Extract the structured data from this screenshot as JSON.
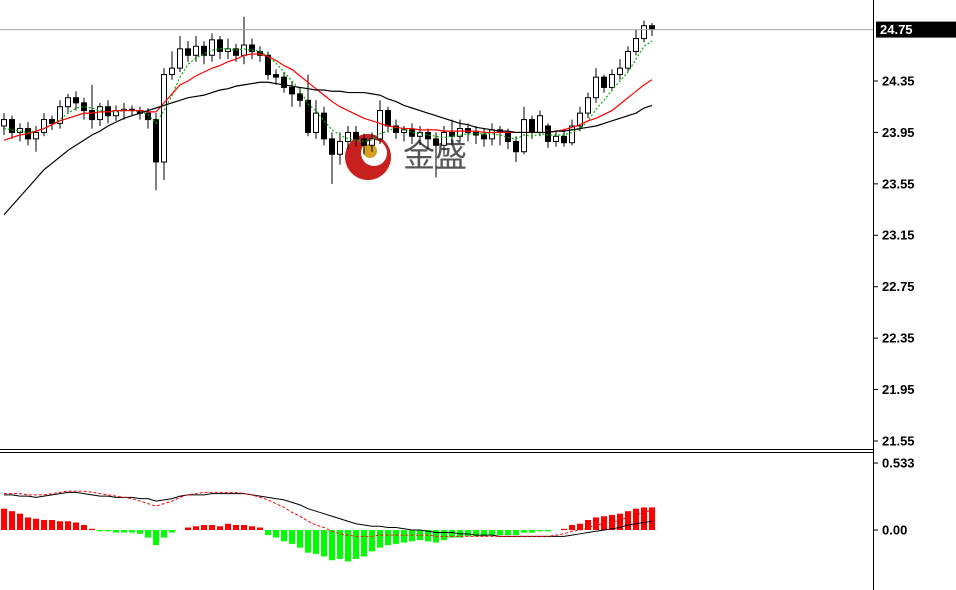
{
  "chart_data": [
    {
      "type": "candlestick",
      "ylim": [
        21.48,
        24.98
      ],
      "yticks": [
        24.35,
        23.95,
        23.55,
        23.15,
        22.75,
        22.35,
        21.95,
        21.55
      ],
      "current_price": 24.75,
      "watermark": "金盛",
      "up_color": "#ffffff",
      "down_color": "#000000",
      "outline_color": "#000000",
      "open": [
        24.0,
        24.05,
        23.95,
        23.98,
        23.9,
        23.95,
        24.05,
        24.02,
        24.15,
        24.22,
        24.18,
        24.12,
        24.05,
        24.15,
        24.08,
        24.12,
        24.13,
        24.12,
        24.1,
        24.05,
        23.72,
        24.4,
        24.45,
        24.6,
        24.55,
        24.62,
        24.55,
        24.67,
        24.58,
        24.6,
        24.55,
        24.63,
        24.58,
        24.55,
        24.4,
        24.38,
        24.3,
        24.25,
        24.2,
        23.95,
        24.1,
        23.9,
        23.78,
        23.88,
        23.95,
        23.9,
        23.85,
        23.9,
        24.12,
        24.0,
        23.95,
        23.97,
        23.92,
        23.95,
        23.9,
        23.85,
        23.95,
        23.92,
        23.98,
        23.95,
        23.93,
        23.9,
        23.97,
        23.95,
        23.88,
        23.8,
        24.05,
        23.95,
        24.0,
        23.88,
        23.92,
        23.87,
        24.0,
        24.1,
        24.22,
        24.38,
        24.3,
        24.4,
        24.45,
        24.58,
        24.68,
        24.78
      ],
      "high": [
        24.1,
        24.08,
        24.02,
        24.03,
        24.0,
        24.1,
        24.08,
        24.2,
        24.25,
        24.27,
        24.22,
        24.32,
        24.18,
        24.2,
        24.16,
        24.18,
        24.16,
        24.15,
        24.14,
        24.1,
        24.45,
        24.58,
        24.7,
        24.66,
        24.7,
        24.66,
        24.72,
        24.7,
        24.68,
        24.64,
        24.85,
        24.68,
        24.62,
        24.58,
        24.44,
        24.42,
        24.35,
        24.3,
        24.4,
        24.2,
        24.15,
        23.95,
        23.95,
        24.0,
        24.0,
        23.94,
        23.95,
        24.2,
        24.15,
        24.05,
        24.0,
        24.02,
        24.0,
        23.98,
        23.95,
        24.0,
        24.05,
        24.05,
        24.02,
        24.0,
        23.98,
        24.02,
        24.0,
        23.98,
        23.92,
        24.15,
        24.08,
        24.12,
        24.02,
        23.96,
        23.98,
        24.05,
        24.15,
        24.26,
        24.45,
        24.4,
        24.44,
        24.52,
        24.62,
        24.75,
        24.82,
        24.8
      ],
      "low": [
        23.93,
        23.9,
        23.88,
        23.85,
        23.8,
        23.92,
        23.97,
        23.98,
        24.1,
        24.12,
        24.05,
        23.98,
        24.0,
        24.02,
        24.04,
        24.05,
        24.08,
        24.05,
        23.98,
        23.5,
        23.58,
        24.36,
        24.42,
        24.5,
        24.5,
        24.48,
        24.5,
        24.52,
        24.52,
        24.5,
        24.48,
        24.52,
        24.5,
        24.36,
        24.32,
        24.26,
        24.15,
        24.15,
        23.92,
        23.9,
        23.85,
        23.55,
        23.7,
        23.82,
        23.84,
        23.78,
        23.8,
        23.86,
        23.95,
        23.9,
        23.88,
        23.86,
        23.85,
        23.82,
        23.6,
        23.78,
        23.85,
        23.88,
        23.88,
        23.86,
        23.84,
        23.85,
        23.85,
        23.82,
        23.72,
        23.78,
        23.9,
        23.92,
        23.83,
        23.84,
        23.84,
        23.85,
        23.96,
        24.06,
        24.18,
        24.26,
        24.27,
        24.36,
        24.42,
        24.55,
        24.65,
        24.7
      ],
      "close": [
        24.05,
        23.95,
        23.98,
        23.9,
        23.95,
        24.05,
        24.02,
        24.15,
        24.22,
        24.18,
        24.12,
        24.05,
        24.15,
        24.08,
        24.12,
        24.13,
        24.12,
        24.1,
        24.05,
        23.72,
        24.4,
        24.45,
        24.6,
        24.55,
        24.62,
        24.55,
        24.67,
        24.58,
        24.6,
        24.55,
        24.63,
        24.58,
        24.55,
        24.4,
        24.38,
        24.3,
        24.25,
        24.2,
        23.95,
        24.1,
        23.9,
        23.78,
        23.88,
        23.95,
        23.9,
        23.85,
        23.9,
        24.12,
        24.0,
        23.95,
        23.97,
        23.92,
        23.95,
        23.9,
        23.85,
        23.95,
        23.92,
        23.98,
        23.95,
        23.93,
        23.9,
        23.97,
        23.95,
        23.88,
        23.8,
        24.05,
        23.95,
        24.08,
        23.88,
        23.92,
        23.87,
        24.0,
        24.1,
        24.22,
        24.38,
        24.3,
        24.4,
        24.45,
        24.58,
        24.68,
        24.78,
        24.75
      ],
      "overlays": [
        {
          "color": "#00b000",
          "dashed": true,
          "values": [
            23.98,
            23.97,
            23.96,
            23.95,
            23.96,
            23.98,
            24.01,
            24.05,
            24.1,
            24.14,
            24.15,
            24.14,
            24.12,
            24.11,
            24.11,
            24.12,
            24.12,
            24.11,
            24.09,
            24.02,
            24.12,
            24.24,
            24.38,
            24.48,
            24.53,
            24.56,
            24.59,
            24.6,
            24.6,
            24.59,
            24.6,
            24.59,
            24.58,
            24.54,
            24.49,
            24.42,
            24.35,
            24.28,
            24.17,
            24.12,
            24.04,
            23.97,
            23.93,
            23.9,
            23.89,
            23.88,
            23.89,
            23.94,
            23.96,
            23.99,
            23.98,
            23.95,
            23.94,
            23.93,
            23.92,
            23.91,
            23.92,
            23.93,
            23.94,
            23.94,
            23.94,
            23.94,
            23.93,
            23.91,
            23.9,
            23.93,
            23.92,
            23.94,
            23.93,
            23.93,
            23.93,
            23.95,
            23.98,
            24.04,
            24.13,
            24.2,
            24.28,
            24.35,
            24.42,
            24.52,
            24.62,
            24.66
          ]
        },
        {
          "color": "#ff0000",
          "dashed": false,
          "values": [
            23.89,
            23.91,
            23.93,
            23.94,
            23.96,
            23.98,
            24.01,
            24.04,
            24.06,
            24.08,
            24.1,
            24.1,
            24.11,
            24.11,
            24.12,
            24.12,
            24.12,
            24.12,
            24.11,
            24.11,
            24.18,
            24.25,
            24.32,
            24.35,
            24.39,
            24.42,
            24.45,
            24.47,
            24.5,
            24.52,
            24.55,
            24.56,
            24.56,
            24.54,
            24.51,
            24.47,
            24.44,
            24.39,
            24.34,
            24.29,
            24.24,
            24.19,
            24.15,
            24.12,
            24.09,
            24.06,
            24.04,
            24.02,
            24.0,
            23.99,
            23.98,
            23.98,
            23.97,
            23.97,
            23.97,
            23.96,
            23.96,
            23.96,
            23.96,
            23.96,
            23.95,
            23.95,
            23.95,
            23.95,
            23.95,
            23.95,
            23.95,
            23.95,
            23.95,
            23.96,
            23.97,
            23.99,
            24.01,
            24.04,
            24.06,
            24.09,
            24.12,
            24.17,
            24.22,
            24.27,
            24.32,
            24.36
          ]
        },
        {
          "color": "#000000",
          "dashed": false,
          "values": [
            23.31,
            23.38,
            23.45,
            23.52,
            23.59,
            23.66,
            23.71,
            23.76,
            23.81,
            23.85,
            23.89,
            23.93,
            23.96,
            24.0,
            24.03,
            24.06,
            24.08,
            24.1,
            24.12,
            24.14,
            24.16,
            24.18,
            24.2,
            24.22,
            24.23,
            24.24,
            24.26,
            24.28,
            24.29,
            24.31,
            24.32,
            24.33,
            24.34,
            24.34,
            24.33,
            24.32,
            24.31,
            24.3,
            24.29,
            24.28,
            24.28,
            24.27,
            24.27,
            24.26,
            24.26,
            24.26,
            24.25,
            24.24,
            24.21,
            24.19,
            24.16,
            24.14,
            24.12,
            24.1,
            24.08,
            24.06,
            24.04,
            24.02,
            24.01,
            23.99,
            23.98,
            23.97,
            23.96,
            23.96,
            23.95,
            23.95,
            23.95,
            23.95,
            23.95,
            23.96,
            23.96,
            23.97,
            23.98,
            23.99,
            24.0,
            24.02,
            24.04,
            24.06,
            24.08,
            24.1,
            24.14,
            24.16
          ]
        }
      ]
    },
    {
      "type": "macd",
      "ylim": [
        -0.477,
        0.597
      ],
      "yticks": [
        0.533,
        {
          "value": 0,
          "label": "0.00"
        }
      ],
      "up_color": "#ff0000",
      "down_color": "#00ff00",
      "values": [
        0.17,
        0.15,
        0.13,
        0.1,
        0.09,
        0.08,
        0.08,
        0.07,
        0.07,
        0.06,
        0.04,
        0.01,
        -0.01,
        -0.01,
        -0.02,
        -0.02,
        -0.02,
        -0.03,
        -0.06,
        -0.12,
        -0.06,
        -0.02,
        0.0,
        0.02,
        0.03,
        0.04,
        0.04,
        0.03,
        0.05,
        0.04,
        0.04,
        0.03,
        0.02,
        -0.04,
        -0.06,
        -0.09,
        -0.11,
        -0.14,
        -0.18,
        -0.19,
        -0.21,
        -0.24,
        -0.23,
        -0.25,
        -0.23,
        -0.21,
        -0.17,
        -0.14,
        -0.12,
        -0.11,
        -0.1,
        -0.09,
        -0.08,
        -0.09,
        -0.1,
        -0.08,
        -0.06,
        -0.06,
        -0.05,
        -0.05,
        -0.05,
        -0.04,
        -0.04,
        -0.04,
        -0.04,
        -0.02,
        -0.02,
        -0.01,
        -0.01,
        0.0,
        0.01,
        0.04,
        0.05,
        0.08,
        0.1,
        0.11,
        0.12,
        0.13,
        0.15,
        0.17,
        0.18,
        0.18
      ],
      "lines": [
        {
          "color": "#000000",
          "dashed": false,
          "values": [
            0.28,
            0.28,
            0.27,
            0.27,
            0.26,
            0.27,
            0.28,
            0.29,
            0.3,
            0.3,
            0.29,
            0.28,
            0.27,
            0.27,
            0.26,
            0.26,
            0.26,
            0.25,
            0.25,
            0.23,
            0.24,
            0.25,
            0.27,
            0.28,
            0.28,
            0.28,
            0.29,
            0.29,
            0.29,
            0.29,
            0.29,
            0.28,
            0.27,
            0.26,
            0.25,
            0.24,
            0.22,
            0.2,
            0.17,
            0.15,
            0.13,
            0.11,
            0.09,
            0.07,
            0.05,
            0.04,
            0.03,
            0.03,
            0.02,
            0.02,
            0.01,
            0.0,
            0.0,
            -0.01,
            -0.02,
            -0.02,
            -0.02,
            -0.03,
            -0.03,
            -0.04,
            -0.04,
            -0.04,
            -0.05,
            -0.05,
            -0.05,
            -0.05,
            -0.05,
            -0.05,
            -0.05,
            -0.05,
            -0.05,
            -0.04,
            -0.03,
            -0.02,
            -0.01,
            0.0,
            0.01,
            0.02,
            0.04,
            0.05,
            0.06,
            0.07
          ]
        },
        {
          "color": "#ff0000",
          "dashed": true,
          "values": [
            0.29,
            0.29,
            0.29,
            0.28,
            0.28,
            0.28,
            0.29,
            0.3,
            0.31,
            0.31,
            0.31,
            0.3,
            0.29,
            0.28,
            0.27,
            0.26,
            0.25,
            0.23,
            0.21,
            0.19,
            0.21,
            0.23,
            0.26,
            0.28,
            0.29,
            0.3,
            0.3,
            0.3,
            0.3,
            0.3,
            0.29,
            0.28,
            0.26,
            0.24,
            0.21,
            0.18,
            0.14,
            0.11,
            0.07,
            0.04,
            0.02,
            -0.01,
            -0.03,
            -0.04,
            -0.05,
            -0.05,
            -0.05,
            -0.04,
            -0.04,
            -0.04,
            -0.04,
            -0.04,
            -0.04,
            -0.04,
            -0.05,
            -0.05,
            -0.05,
            -0.05,
            -0.05,
            -0.05,
            -0.05,
            -0.05,
            -0.05,
            -0.05,
            -0.05,
            -0.05,
            -0.05,
            -0.05,
            -0.05,
            -0.04,
            -0.03,
            -0.01,
            0.0,
            0.02,
            0.04,
            0.05,
            0.06,
            0.08,
            0.1,
            0.12,
            0.14,
            0.16
          ]
        }
      ]
    }
  ]
}
